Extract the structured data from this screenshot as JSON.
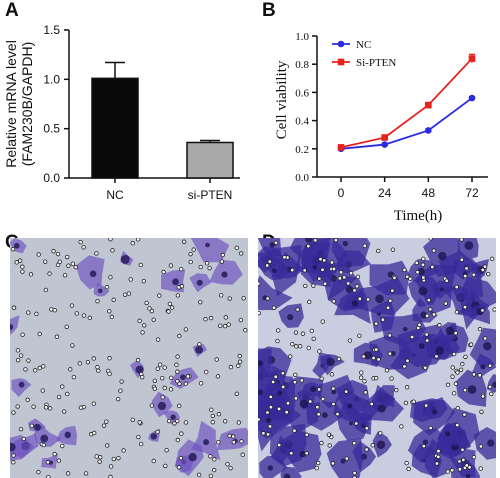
{
  "panels": {
    "a": "A",
    "b": "B",
    "c": "C",
    "d": "D"
  },
  "chart_data": [
    {
      "type": "bar",
      "panel": "A",
      "categories": [
        "NC",
        "si-PTEN"
      ],
      "values": [
        1.01,
        0.36
      ],
      "errors": [
        0.16,
        0.02
      ],
      "ylabel_line1": "Relative mRNA level",
      "ylabel_line2": "(FAM230B/GAPDH)",
      "ylim": [
        0,
        1.5
      ],
      "yticks": [
        "0.0",
        "0.5",
        "1.0",
        "1.5"
      ],
      "bar_colors": [
        "#0a0a0a",
        "#a8a8a8"
      ]
    },
    {
      "type": "line",
      "panel": "B",
      "x": [
        0,
        24,
        48,
        72
      ],
      "xticks": [
        "0",
        "24",
        "48",
        "72"
      ],
      "xlabel": "Time(h)",
      "ylabel": "Cell viability",
      "ylim": [
        0,
        1.0
      ],
      "yticks": [
        "0.0",
        "0.2",
        "0.4",
        "0.6",
        "0.8",
        "1.0"
      ],
      "series": [
        {
          "name": "NC",
          "values": [
            0.2,
            0.23,
            0.33,
            0.56
          ],
          "errors": [
            0.01,
            0.01,
            0.01,
            0.01
          ],
          "color": "#2a2ae0",
          "marker": "circle"
        },
        {
          "name": "Si-PTEN",
          "values": [
            0.21,
            0.28,
            0.51,
            0.84
          ],
          "errors": [
            0.01,
            0.01,
            0.01,
            0.03
          ],
          "color": "#e8211d",
          "marker": "square"
        }
      ],
      "legend": "top-left"
    }
  ],
  "micrographs": [
    {
      "panel": "C",
      "stain_color": "#6b4fc0",
      "background_color": "#bfc6d2",
      "cell_density": "sparse"
    },
    {
      "panel": "D",
      "stain_color": "#3a2a9a",
      "background_color": "#c9cde0",
      "cell_density": "dense"
    }
  ]
}
